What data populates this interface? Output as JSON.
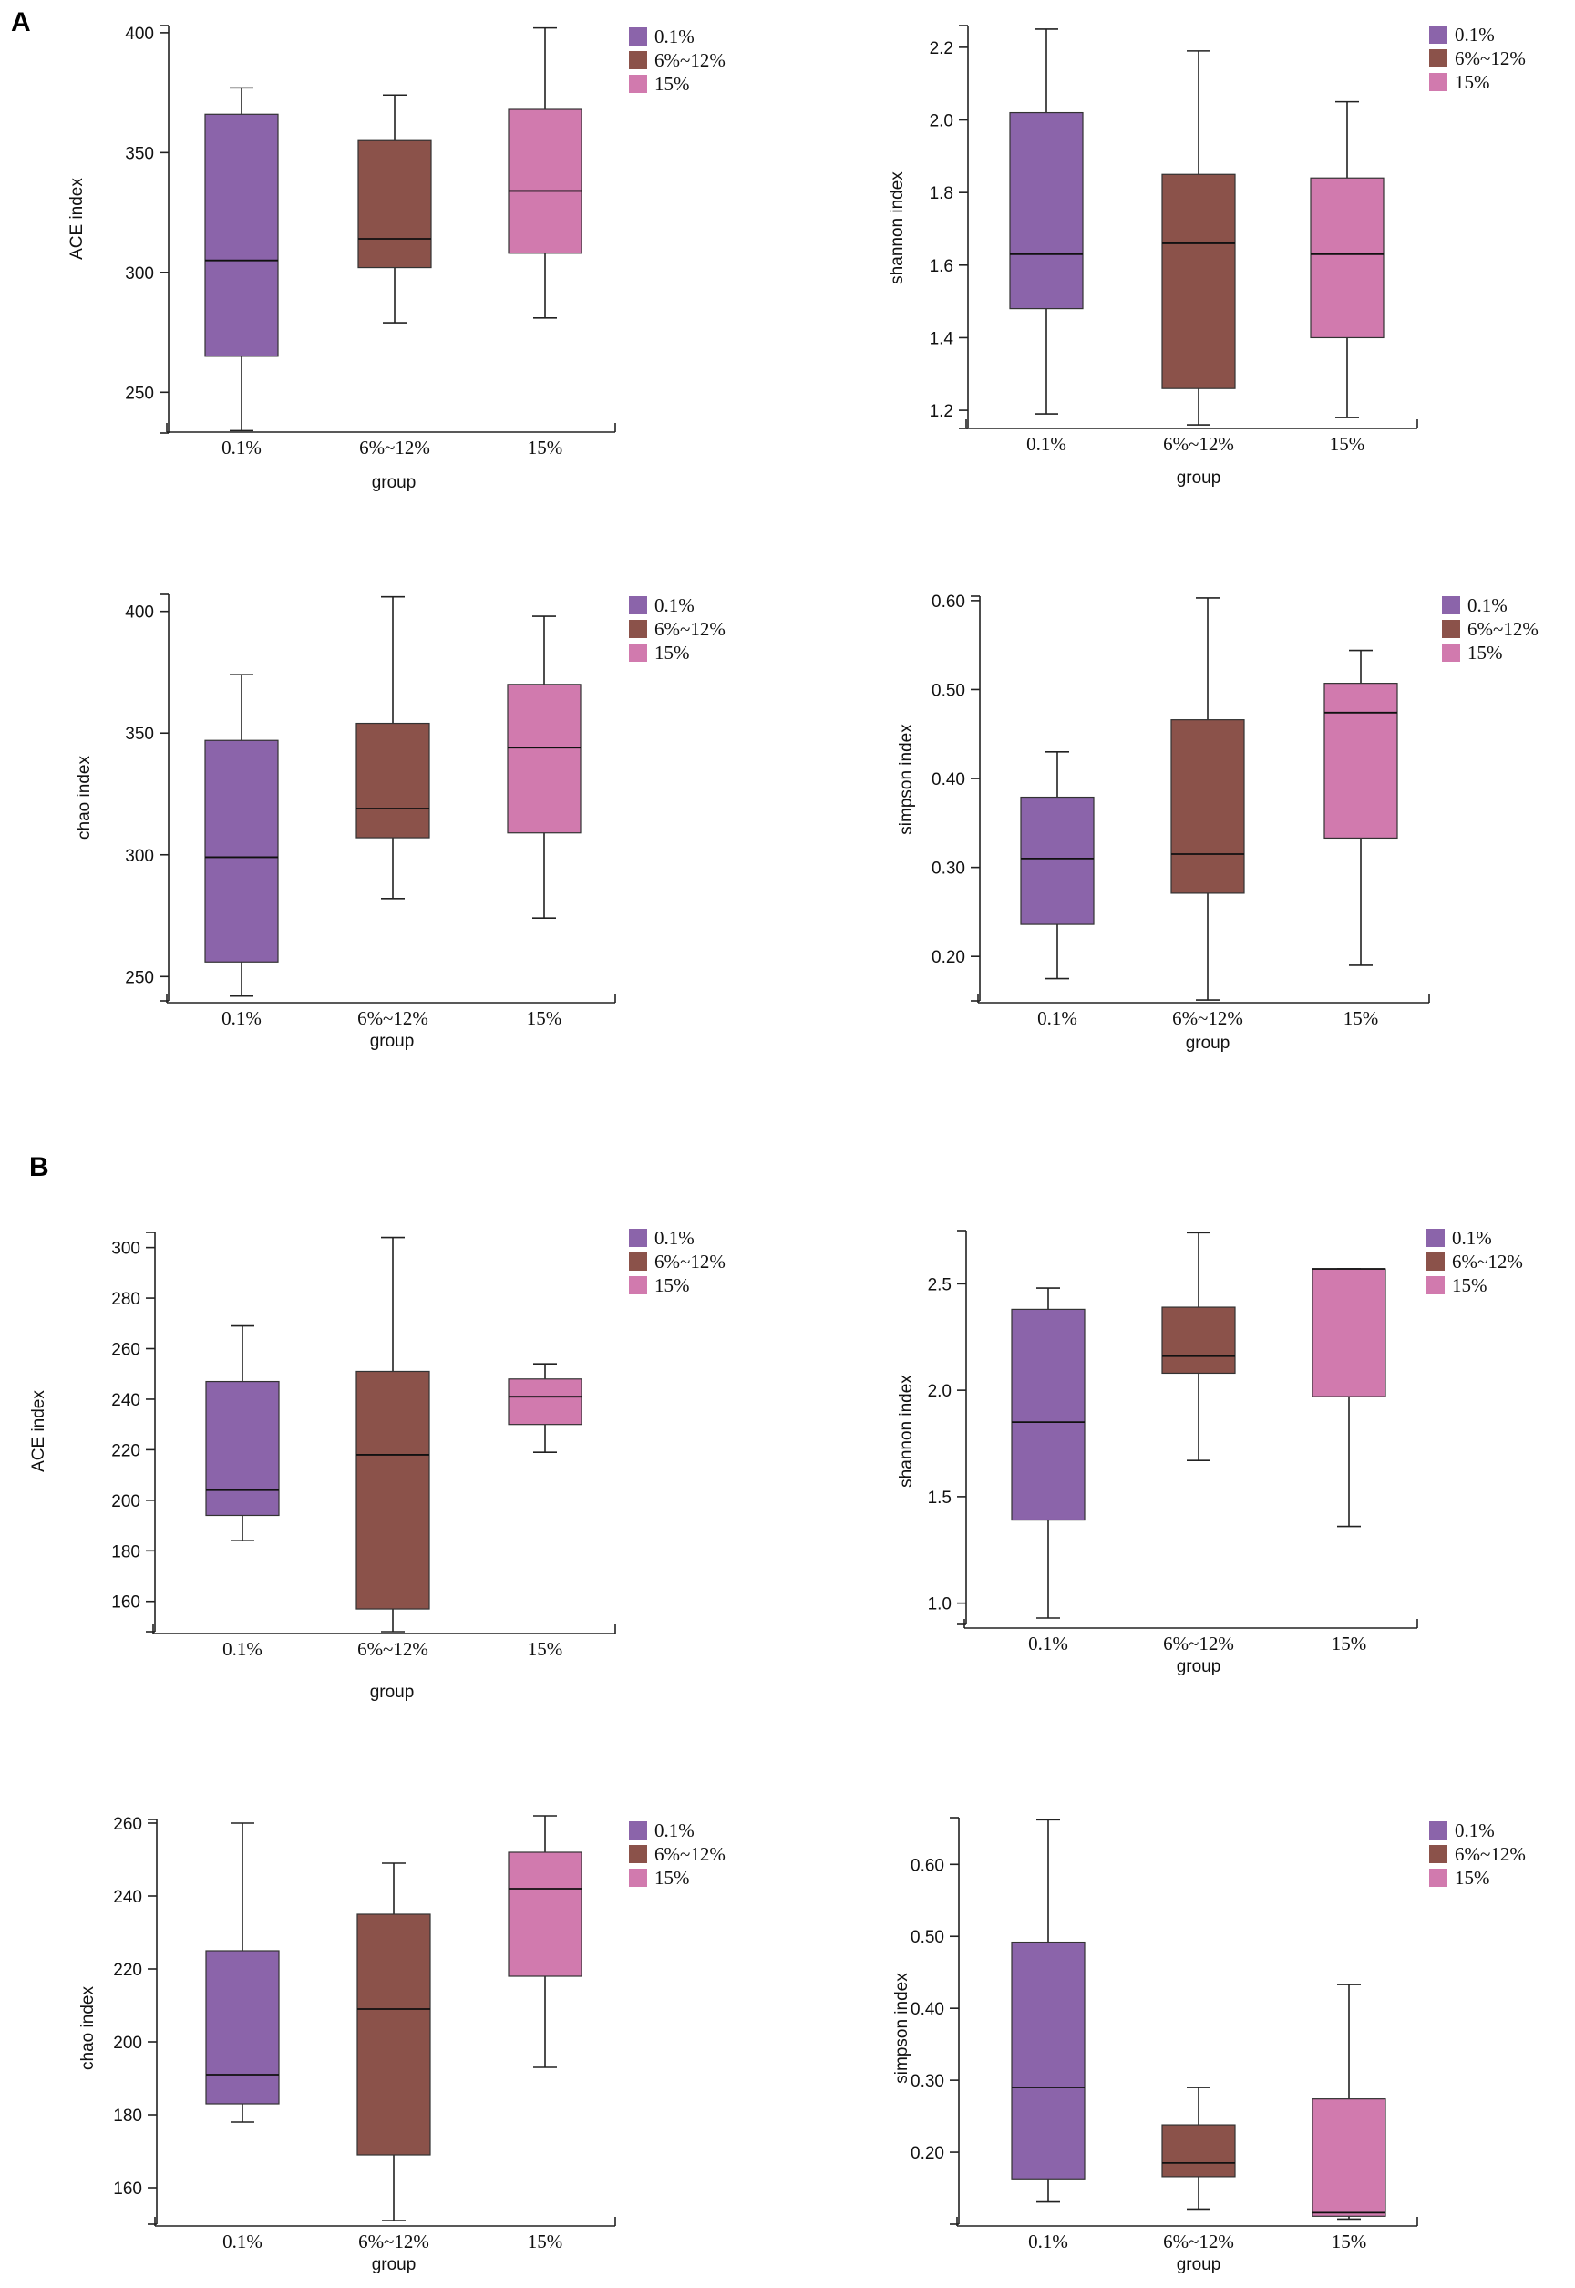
{
  "panels": [
    {
      "letter": "A"
    },
    {
      "letter": "B"
    }
  ],
  "chart_data": [
    {
      "type": "boxplot",
      "panel": "A",
      "ylabel": "ACE index",
      "xlabel": "group",
      "categories": [
        "0.1%",
        "6%~12%",
        "15%"
      ],
      "ylim": [
        233,
        403
      ],
      "yticks": [
        250,
        300,
        350,
        400
      ],
      "colors": [
        "#8b64aa",
        "#8b524a",
        "#d17aae"
      ],
      "legend": [
        "0.1%",
        "6%~12%",
        "15%"
      ],
      "boxes": [
        {
          "min": 234,
          "q1": 265,
          "median": 305,
          "q3": 366,
          "max": 377
        },
        {
          "min": 279,
          "q1": 302,
          "median": 314,
          "q3": 355,
          "max": 374
        },
        {
          "min": 281,
          "q1": 308,
          "median": 334,
          "q3": 368,
          "max": 402
        }
      ]
    },
    {
      "type": "boxplot",
      "panel": "A",
      "ylabel": "shannon index",
      "xlabel": "group",
      "categories": [
        "0.1%",
        "6%~12%",
        "15%"
      ],
      "ylim": [
        1.15,
        2.26
      ],
      "yticks": [
        1.2,
        1.4,
        1.6,
        1.8,
        2.0,
        2.2
      ],
      "colors": [
        "#8b64aa",
        "#8b524a",
        "#d17aae"
      ],
      "legend": [
        "0.1%",
        "6%~12%",
        "15%"
      ],
      "boxes": [
        {
          "min": 1.19,
          "q1": 1.48,
          "median": 1.63,
          "q3": 2.02,
          "max": 2.25
        },
        {
          "min": 1.16,
          "q1": 1.26,
          "median": 1.66,
          "q3": 1.85,
          "max": 2.19
        },
        {
          "min": 1.18,
          "q1": 1.4,
          "median": 1.63,
          "q3": 1.84,
          "max": 2.05
        }
      ]
    },
    {
      "type": "boxplot",
      "panel": "A",
      "ylabel": "chao index",
      "xlabel": "group",
      "categories": [
        "0.1%",
        "6%~12%",
        "15%"
      ],
      "ylim": [
        240,
        407
      ],
      "yticks": [
        250,
        300,
        350,
        400
      ],
      "colors": [
        "#8b64aa",
        "#8b524a",
        "#d17aae"
      ],
      "legend": [
        "0.1%",
        "6%~12%",
        "15%"
      ],
      "boxes": [
        {
          "min": 242,
          "q1": 256,
          "median": 299,
          "q3": 347,
          "max": 374
        },
        {
          "min": 282,
          "q1": 307,
          "median": 319,
          "q3": 354,
          "max": 406
        },
        {
          "min": 274,
          "q1": 309,
          "median": 344,
          "q3": 370,
          "max": 398
        }
      ]
    },
    {
      "type": "boxplot",
      "panel": "A",
      "ylabel": "simpson index",
      "xlabel": "group",
      "categories": [
        "0.1%",
        "6%~12%",
        "15%"
      ],
      "ylim": [
        0.15,
        0.605
      ],
      "yticks": [
        0.2,
        0.3,
        0.4,
        0.5,
        0.6
      ],
      "colors": [
        "#8b64aa",
        "#8b524a",
        "#d17aae"
      ],
      "legend": [
        "0.1%",
        "6%~12%",
        "15%"
      ],
      "boxes": [
        {
          "min": 0.175,
          "q1": 0.236,
          "median": 0.31,
          "q3": 0.379,
          "max": 0.43
        },
        {
          "min": 0.151,
          "q1": 0.271,
          "median": 0.315,
          "q3": 0.466,
          "max": 0.603
        },
        {
          "min": 0.19,
          "q1": 0.333,
          "median": 0.474,
          "q3": 0.507,
          "max": 0.544
        }
      ]
    },
    {
      "type": "boxplot",
      "panel": "B",
      "ylabel": "ACE index",
      "xlabel": "group",
      "categories": [
        "0.1%",
        "6%~12%",
        "15%"
      ],
      "ylim": [
        148,
        306
      ],
      "yticks": [
        160,
        180,
        200,
        220,
        240,
        260,
        280,
        300
      ],
      "colors": [
        "#8b64aa",
        "#8b524a",
        "#d17aae"
      ],
      "legend": [
        "0.1%",
        "6%~12%",
        "15%"
      ],
      "boxes": [
        {
          "min": 184,
          "q1": 194,
          "median": 204,
          "q3": 247,
          "max": 269
        },
        {
          "min": 148,
          "q1": 157,
          "median": 218,
          "q3": 251,
          "max": 304
        },
        {
          "min": 219,
          "q1": 230,
          "median": 241,
          "q3": 248,
          "max": 254
        }
      ]
    },
    {
      "type": "boxplot",
      "panel": "B",
      "ylabel": "shannon index",
      "xlabel": "group",
      "categories": [
        "0.1%",
        "6%~12%",
        "15%"
      ],
      "ylim": [
        0.9,
        2.75
      ],
      "yticks": [
        1.0,
        1.5,
        2.0,
        2.5
      ],
      "colors": [
        "#8b64aa",
        "#8b524a",
        "#d17aae"
      ],
      "legend": [
        "0.1%",
        "6%~12%",
        "15%"
      ],
      "boxes": [
        {
          "min": 0.93,
          "q1": 1.39,
          "median": 1.85,
          "q3": 2.38,
          "max": 2.48
        },
        {
          "min": 1.67,
          "q1": 2.08,
          "median": 2.16,
          "q3": 2.39,
          "max": 2.74
        },
        {
          "min": 1.36,
          "q1": 1.97,
          "median": 2.57,
          "q3": 2.57,
          "max": 2.57
        }
      ]
    },
    {
      "type": "boxplot",
      "panel": "B",
      "ylabel": "chao index",
      "xlabel": "group",
      "categories": [
        "0.1%",
        "6%~12%",
        "15%"
      ],
      "ylim": [
        150,
        261
      ],
      "yticks": [
        160,
        180,
        200,
        220,
        240,
        260
      ],
      "colors": [
        "#8b64aa",
        "#8b524a",
        "#d17aae"
      ],
      "legend": [
        "0.1%",
        "6%~12%",
        "15%"
      ],
      "boxes": [
        {
          "min": 178,
          "q1": 183,
          "median": 191,
          "q3": 225,
          "max": 260
        },
        {
          "min": 151,
          "q1": 169,
          "median": 209,
          "q3": 235,
          "max": 249
        },
        {
          "min": 193,
          "q1": 218,
          "median": 242,
          "q3": 252,
          "max": 262
        }
      ]
    },
    {
      "type": "boxplot",
      "panel": "B",
      "ylabel": "simpson index",
      "xlabel": "group",
      "categories": [
        "0.1%",
        "6%~12%",
        "15%"
      ],
      "ylim": [
        0.1,
        0.665
      ],
      "yticks": [
        0.2,
        0.3,
        0.4,
        0.5,
        0.6
      ],
      "colors": [
        "#8b64aa",
        "#8b524a",
        "#d17aae"
      ],
      "legend": [
        "0.1%",
        "6%~12%",
        "15%"
      ],
      "boxes": [
        {
          "min": 0.131,
          "q1": 0.163,
          "median": 0.29,
          "q3": 0.492,
          "max": 0.662
        },
        {
          "min": 0.121,
          "q1": 0.166,
          "median": 0.185,
          "q3": 0.238,
          "max": 0.29
        },
        {
          "min": 0.107,
          "q1": 0.111,
          "median": 0.116,
          "q3": 0.274,
          "max": 0.433
        }
      ]
    }
  ]
}
